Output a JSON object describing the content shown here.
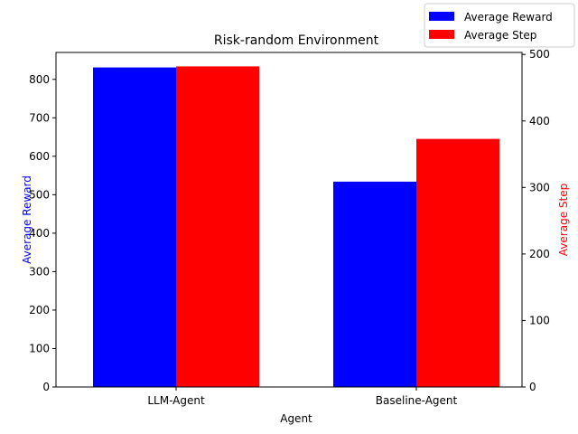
{
  "chart_data": {
    "type": "bar",
    "title": "Risk-random Environment",
    "xlabel": "Agent",
    "categories": [
      "LLM-Agent",
      "Baseline-Agent"
    ],
    "y_left": {
      "label": "Average Reward",
      "color": "#0000ff",
      "lim": [
        0,
        870
      ],
      "ticks": [
        0,
        100,
        200,
        300,
        400,
        500,
        600,
        700,
        800
      ]
    },
    "y_right": {
      "label": "Average Step",
      "color": "#ff0000",
      "lim": [
        0,
        503
      ],
      "ticks": [
        0,
        100,
        200,
        300,
        400,
        500
      ]
    },
    "series": [
      {
        "name": "Average Reward",
        "axis": "left",
        "color": "#0000ff",
        "values": [
          831,
          534
        ]
      },
      {
        "name": "Average Step",
        "axis": "right",
        "color": "#ff0000",
        "values": [
          482,
          373
        ]
      }
    ],
    "legend": {
      "position": "top-right",
      "entries": [
        "Average Reward",
        "Average Step"
      ]
    },
    "grid": false
  }
}
